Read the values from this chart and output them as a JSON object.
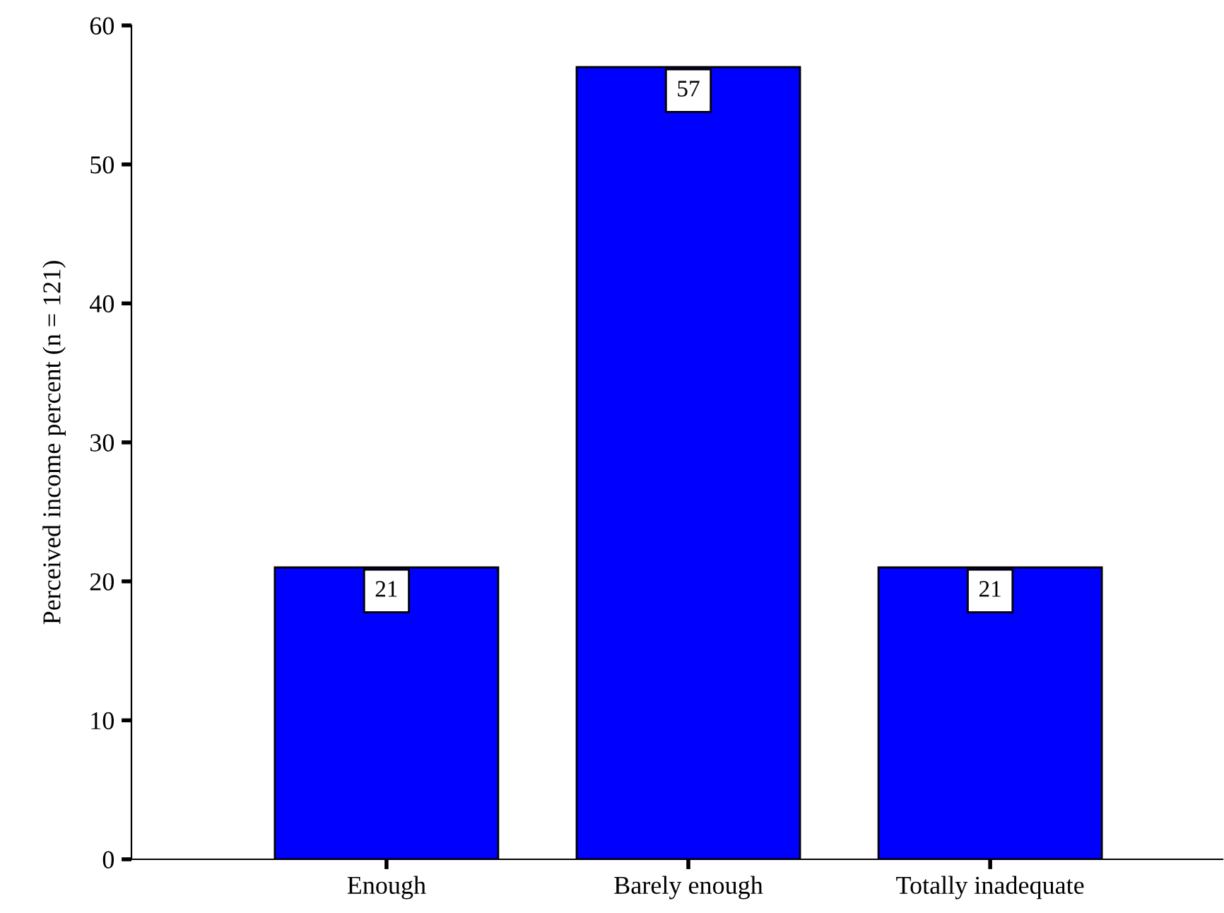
{
  "chart_data": {
    "type": "bar",
    "ylabel": "Perceived income percent (n = 121)",
    "categories": [
      "Enough",
      "Barely enough",
      "Totally inadequate"
    ],
    "values": [
      21,
      57,
      21
    ],
    "color": "#0000ff",
    "ylim": [
      0,
      60
    ],
    "yticks": [
      0,
      10,
      20,
      30,
      40,
      50,
      60
    ],
    "grid": false,
    "data_labels": true
  }
}
